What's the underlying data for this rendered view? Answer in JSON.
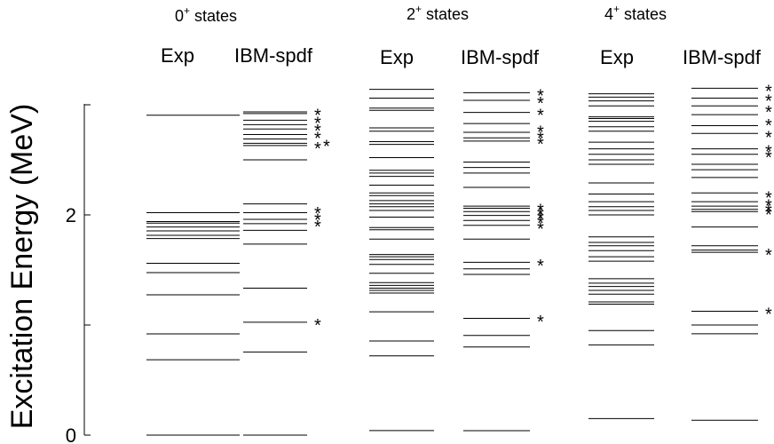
{
  "chart_data": {
    "type": "level-scheme",
    "ylabel": "Excitation Energy (MeV)",
    "ylim": [
      0,
      3.0
    ],
    "yticks": [
      0,
      2
    ],
    "groups": [
      {
        "title_base": "0",
        "title_sup": "+",
        "title_rest": " states",
        "columns": [
          {
            "label": "Exp",
            "levels": [
              0.0,
              0.684,
              0.919,
              1.274,
              1.476,
              1.56,
              1.785,
              1.815,
              1.855,
              1.89,
              1.925,
              1.94,
              2.02,
              2.905
            ],
            "starred": []
          },
          {
            "label": "IBM-spdf",
            "levels": [
              0.0,
              0.755,
              1.025,
              1.335,
              1.735,
              1.86,
              1.92,
              1.96,
              2.02,
              2.1,
              2.5,
              2.63,
              2.65,
              2.69,
              2.73,
              2.78,
              2.82,
              2.86,
              2.92,
              2.935
            ],
            "starred": [
              1.025,
              1.92,
              1.98,
              2.04,
              2.63,
              2.65,
              2.72,
              2.79,
              2.86,
              2.93
            ]
          }
        ]
      },
      {
        "title_base": "2",
        "title_sup": "+",
        "title_rest": " states",
        "columns": [
          {
            "label": "Exp",
            "levels": [
              0.041,
              0.72,
              0.855,
              1.12,
              1.29,
              1.315,
              1.335,
              1.36,
              1.385,
              1.47,
              1.55,
              1.595,
              1.62,
              1.64,
              1.78,
              1.865,
              1.885,
              1.98,
              2.04,
              2.075,
              2.1,
              2.13,
              2.175,
              2.2,
              2.27,
              2.35,
              2.38,
              2.405,
              2.52,
              2.64,
              2.665,
              2.76,
              2.79,
              2.95,
              2.97,
              3.06,
              3.14
            ],
            "starred": []
          },
          {
            "label": "IBM-spdf",
            "levels": [
              0.04,
              0.8,
              0.905,
              1.06,
              1.46,
              1.51,
              1.57,
              1.78,
              1.905,
              1.95,
              1.995,
              2.03,
              2.06,
              2.08,
              2.25,
              2.38,
              2.43,
              2.48,
              2.67,
              2.7,
              2.75,
              2.83,
              2.93,
              3.04,
              3.11
            ],
            "starred": [
              1.055,
              1.565,
              1.9,
              1.95,
              1.99,
              2.03,
              2.07,
              2.67,
              2.72,
              2.78,
              2.93,
              3.04,
              3.11
            ]
          }
        ]
      },
      {
        "title_base": "4",
        "title_sup": "+",
        "title_rest": " states",
        "columns": [
          {
            "label": "Exp",
            "levels": [
              0.15,
              0.82,
              0.95,
              1.19,
              1.21,
              1.28,
              1.315,
              1.35,
              1.38,
              1.42,
              1.58,
              1.62,
              1.675,
              1.72,
              1.75,
              1.8,
              2.0,
              2.04,
              2.075,
              2.12,
              2.19,
              2.29,
              2.46,
              2.5,
              2.55,
              2.6,
              2.66,
              2.76,
              2.8,
              2.85,
              2.875,
              2.89,
              2.99,
              3.035,
              3.07,
              3.1
            ],
            "starred": []
          },
          {
            "label": "IBM-spdf",
            "levels": [
              0.135,
              0.92,
              1.0,
              1.125,
              1.66,
              1.68,
              1.72,
              1.89,
              2.03,
              2.05,
              2.08,
              2.12,
              2.2,
              2.34,
              2.41,
              2.46,
              2.55,
              2.6,
              2.74,
              2.81,
              2.91,
              2.99,
              3.06,
              3.15
            ],
            "starred": [
              1.125,
              1.66,
              2.03,
              2.06,
              2.11,
              2.18,
              2.55,
              2.6,
              2.73,
              2.84,
              2.96,
              3.06,
              3.15
            ]
          }
        ]
      }
    ]
  }
}
